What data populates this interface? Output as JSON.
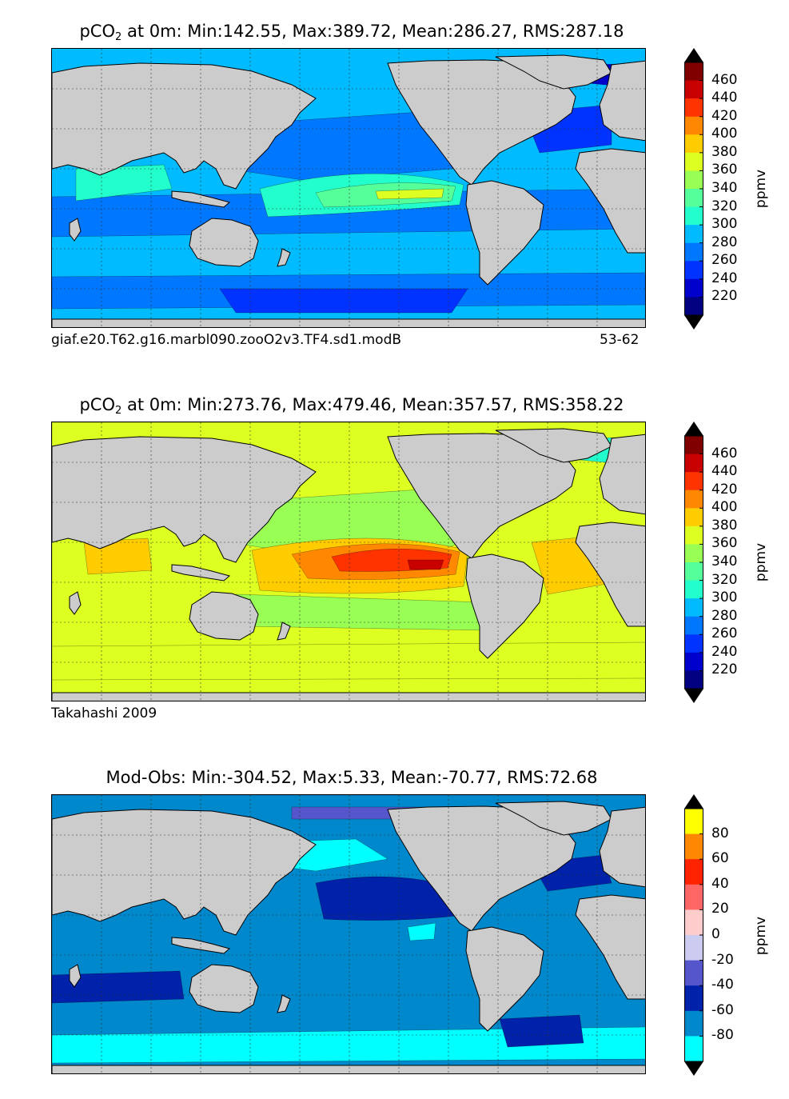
{
  "chart_data": [
    {
      "type": "heatmap",
      "title_prefix": "pCO",
      "title_subscript": "2",
      "title_suffix": " at 0m: Min:142.55, Max:389.72, Mean:286.27, RMS:287.18",
      "caption_left": "giaf.e20.T62.g16.marbl090.zooO2v3.TF4.sd1.modB",
      "caption_right": "53-62",
      "colorbar": {
        "unit": "ppmv",
        "ticks": [
          "460",
          "440",
          "420",
          "400",
          "380",
          "360",
          "340",
          "320",
          "300",
          "280",
          "260",
          "240",
          "220"
        ],
        "colors": [
          "#800000",
          "#c80000",
          "#ff3300",
          "#ff8800",
          "#ffcc00",
          "#ddff22",
          "#99ff55",
          "#55ff99",
          "#22ffcc",
          "#00bbff",
          "#0077ff",
          "#0033ff",
          "#0000cc",
          "#000080"
        ]
      }
    },
    {
      "type": "heatmap",
      "title_prefix": "pCO",
      "title_subscript": "2",
      "title_suffix": " at 0m: Min:273.76, Max:479.46, Mean:357.57, RMS:358.22",
      "caption_left": "Takahashi 2009",
      "caption_right": "",
      "colorbar": {
        "unit": "ppmv",
        "ticks": [
          "460",
          "440",
          "420",
          "400",
          "380",
          "360",
          "340",
          "320",
          "300",
          "280",
          "260",
          "240",
          "220"
        ],
        "colors": [
          "#800000",
          "#c80000",
          "#ff3300",
          "#ff8800",
          "#ffcc00",
          "#ddff22",
          "#99ff55",
          "#55ff99",
          "#22ffcc",
          "#00bbff",
          "#0077ff",
          "#0033ff",
          "#0000cc",
          "#000080"
        ]
      }
    },
    {
      "type": "heatmap",
      "title_prefix": "Mod-Obs: Min:-304.52, Max:5.33, Mean:-70.77, RMS:72.68",
      "title_subscript": "",
      "title_suffix": "",
      "caption_left": "",
      "caption_right": "",
      "colorbar": {
        "unit": "ppmv",
        "ticks": [
          "80",
          "60",
          "40",
          "20",
          "0",
          "-20",
          "-40",
          "-60",
          "-80"
        ],
        "colors": [
          "#ffff00",
          "#ff8800",
          "#ff2200",
          "#ff6666",
          "#ffcccc",
          "#ccccf0",
          "#5555cc",
          "#0022aa",
          "#0088cc",
          "#00ffff"
        ]
      }
    }
  ]
}
